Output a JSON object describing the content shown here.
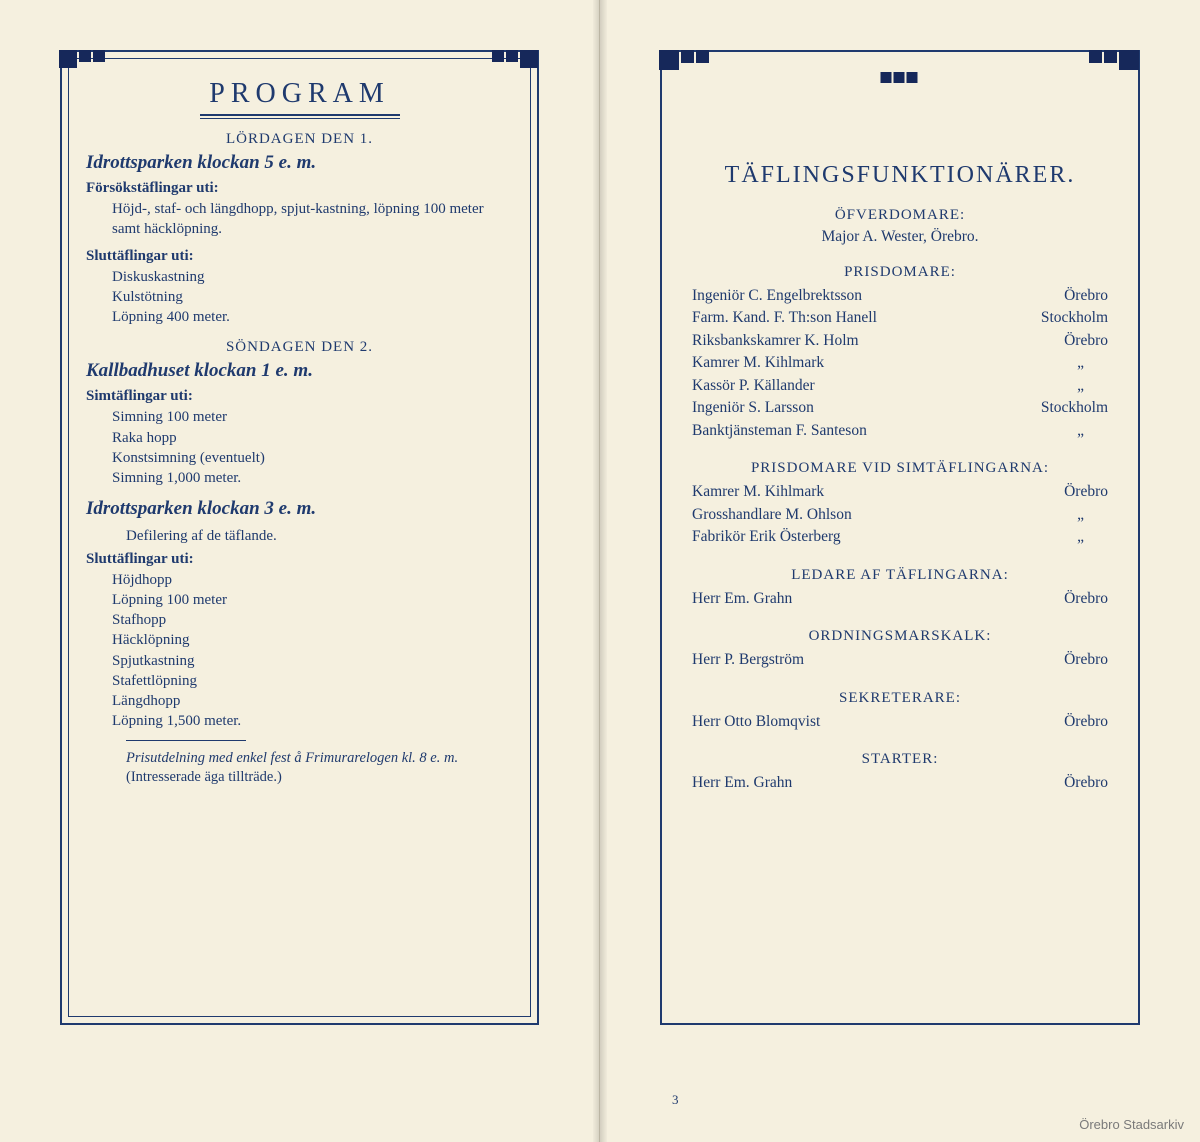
{
  "colors": {
    "ink": "#1f3a6e",
    "paper": "#f5f0df",
    "ornament": "#16285a"
  },
  "watermark": "Örebro Stadsarkiv",
  "page_number_right": "3",
  "left": {
    "title": "PROGRAM",
    "day1": "LÖRDAGEN DEN 1.",
    "venue1": "Idrottsparken klockan 5 e. m.",
    "sub1a": "Försökstäflingar uti:",
    "body1a": "Höjd-, staf- och längdhopp, spjut-kastning, löpning 100 meter samt häcklöpning.",
    "sub1b": "Sluttäflingar uti:",
    "events1b": [
      "Diskuskastning",
      "Kulstötning",
      "Löpning 400 meter."
    ],
    "day2": "SÖNDAGEN DEN 2.",
    "venue2": "Kallbadhuset klockan 1 e. m.",
    "sub2a": "Simtäflingar uti:",
    "events2a": [
      "Simning 100 meter",
      "Raka hopp",
      "Konstsimning (eventuelt)",
      "Simning 1,000 meter."
    ],
    "venue3": "Idrottsparken klockan 3 e. m.",
    "body3": "Defilering af de täflande.",
    "sub3a": "Sluttäflingar uti:",
    "events3a": [
      "Höjdhopp",
      "Löpning 100 meter",
      "Stafhopp",
      "Häcklöpning",
      "Spjutkastning",
      "Stafettlöpning",
      "Längdhopp",
      "Löpning 1,500 meter."
    ],
    "foot1": "Prisutdelning med enkel fest å Frimurarelogen kl. 8 e. m.",
    "foot2": "(Intresserade äga tillträde.)"
  },
  "right": {
    "title": "TÄFLINGSFUNKTIONÄRER.",
    "roles": [
      {
        "role": "ÖFVERDOMARE:",
        "single": "Major A. Wester, Örebro."
      },
      {
        "role": "PRISDOMARE:",
        "rows": [
          {
            "name": "Ingeniör C. Engelbrektsson",
            "city": "Örebro"
          },
          {
            "name": "Farm. Kand. F. Th:son Hanell",
            "city": "Stockholm"
          },
          {
            "name": "Riksbankskamrer K. Holm",
            "city": "Örebro"
          },
          {
            "name": "Kamrer M. Kihlmark",
            "city": "„"
          },
          {
            "name": "Kassör P. Källander",
            "city": "„"
          },
          {
            "name": "Ingeniör S. Larsson",
            "city": "Stockholm"
          },
          {
            "name": "Banktjänsteman F. Santeson",
            "city": "„"
          }
        ]
      },
      {
        "role": "PRISDOMARE VID SIMTÄFLINGARNA:",
        "rows": [
          {
            "name": "Kamrer M. Kihlmark",
            "city": "Örebro"
          },
          {
            "name": "Grosshandlare M. Ohlson",
            "city": "„"
          },
          {
            "name": "Fabrikör Erik Österberg",
            "city": "„"
          }
        ]
      },
      {
        "role": "LEDARE AF TÄFLINGARNA:",
        "rows": [
          {
            "name": "Herr Em. Grahn",
            "city": "Örebro"
          }
        ]
      },
      {
        "role": "ORDNINGSMARSKALK:",
        "rows": [
          {
            "name": "Herr P. Bergström",
            "city": "Örebro"
          }
        ]
      },
      {
        "role": "SEKRETERARE:",
        "rows": [
          {
            "name": "Herr Otto Blomqvist",
            "city": "Örebro"
          }
        ]
      },
      {
        "role": "STARTER:",
        "rows": [
          {
            "name": "Herr Em. Grahn",
            "city": "Örebro"
          }
        ]
      }
    ]
  }
}
